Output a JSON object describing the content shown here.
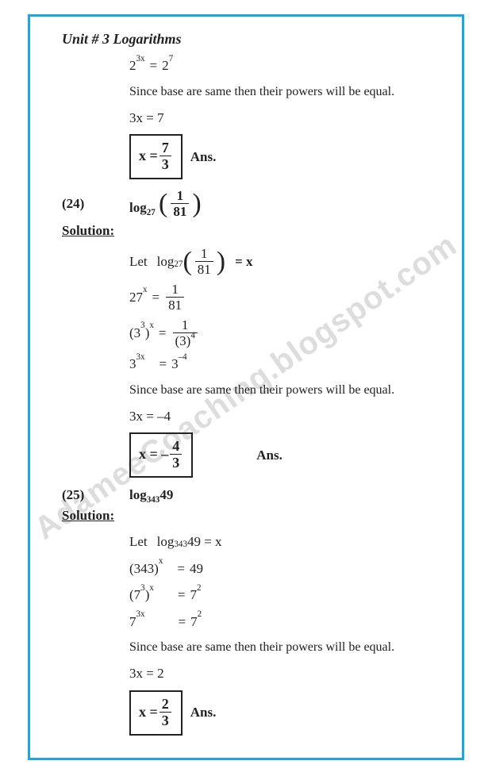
{
  "border_color": "#1ea5e0",
  "watermark": "AdameeCoaching.blogspot.com",
  "title": "Unit # 3 Logarithms",
  "intro": {
    "eq1_left_base": "2",
    "eq1_left_exp": "3x",
    "eq1_right_base": "2",
    "eq1_right_exp": "7",
    "since_text": "Since base are same then their powers will be equal.",
    "eq2": "3x = 7",
    "ans_prefix": "x =",
    "ans_num": "7",
    "ans_den": "3",
    "ans_label": "Ans."
  },
  "p24": {
    "num": "(24)",
    "log_base": "27",
    "frac_num": "1",
    "frac_den": "81",
    "solution": "Solution:",
    "let": "Let",
    "eqx": "= x",
    "s1_left": "27",
    "s1_exp": "x",
    "s1_rnum": "1",
    "s1_rden": "81",
    "s2_lbase": "3",
    "s2_lexp1": "3",
    "s2_lexp2": "x",
    "s2_rnum": "1",
    "s2_rden_base": "(3)",
    "s2_rden_exp": "4",
    "s3_lbase": "3",
    "s3_lexp": "3x",
    "s3_rbase": "3",
    "s3_rexp": "–4",
    "since_text": "Since base are same then their powers will be equal.",
    "eqp": "3x = –4",
    "ans_prefix": "x = –",
    "ans_num": "4",
    "ans_den": "3",
    "ans_label": "Ans."
  },
  "p25": {
    "num": "(25)",
    "expr_pre": "log",
    "expr_sub": "343",
    "expr_arg": "49",
    "solution": "Solution:",
    "let": "Let",
    "let_expr_pre": "log",
    "let_sub": "343",
    "let_arg": "49 = x",
    "s1_l": "(343)",
    "s1_exp": "x",
    "s1_r": "49",
    "s2_l": "(7",
    "s2_lexp1": "3",
    "s2_l2": ")",
    "s2_lexp2": "x",
    "s2_r": "7",
    "s2_rexp": "2",
    "s3_l": "7",
    "s3_lexp": "3x",
    "s3_r": "7",
    "s3_rexp": "2",
    "since_text": "Since base are same then their powers will be equal.",
    "eqp": "3x = 2",
    "ans_prefix": "x =",
    "ans_num": "2",
    "ans_den": "3",
    "ans_label": "Ans."
  }
}
